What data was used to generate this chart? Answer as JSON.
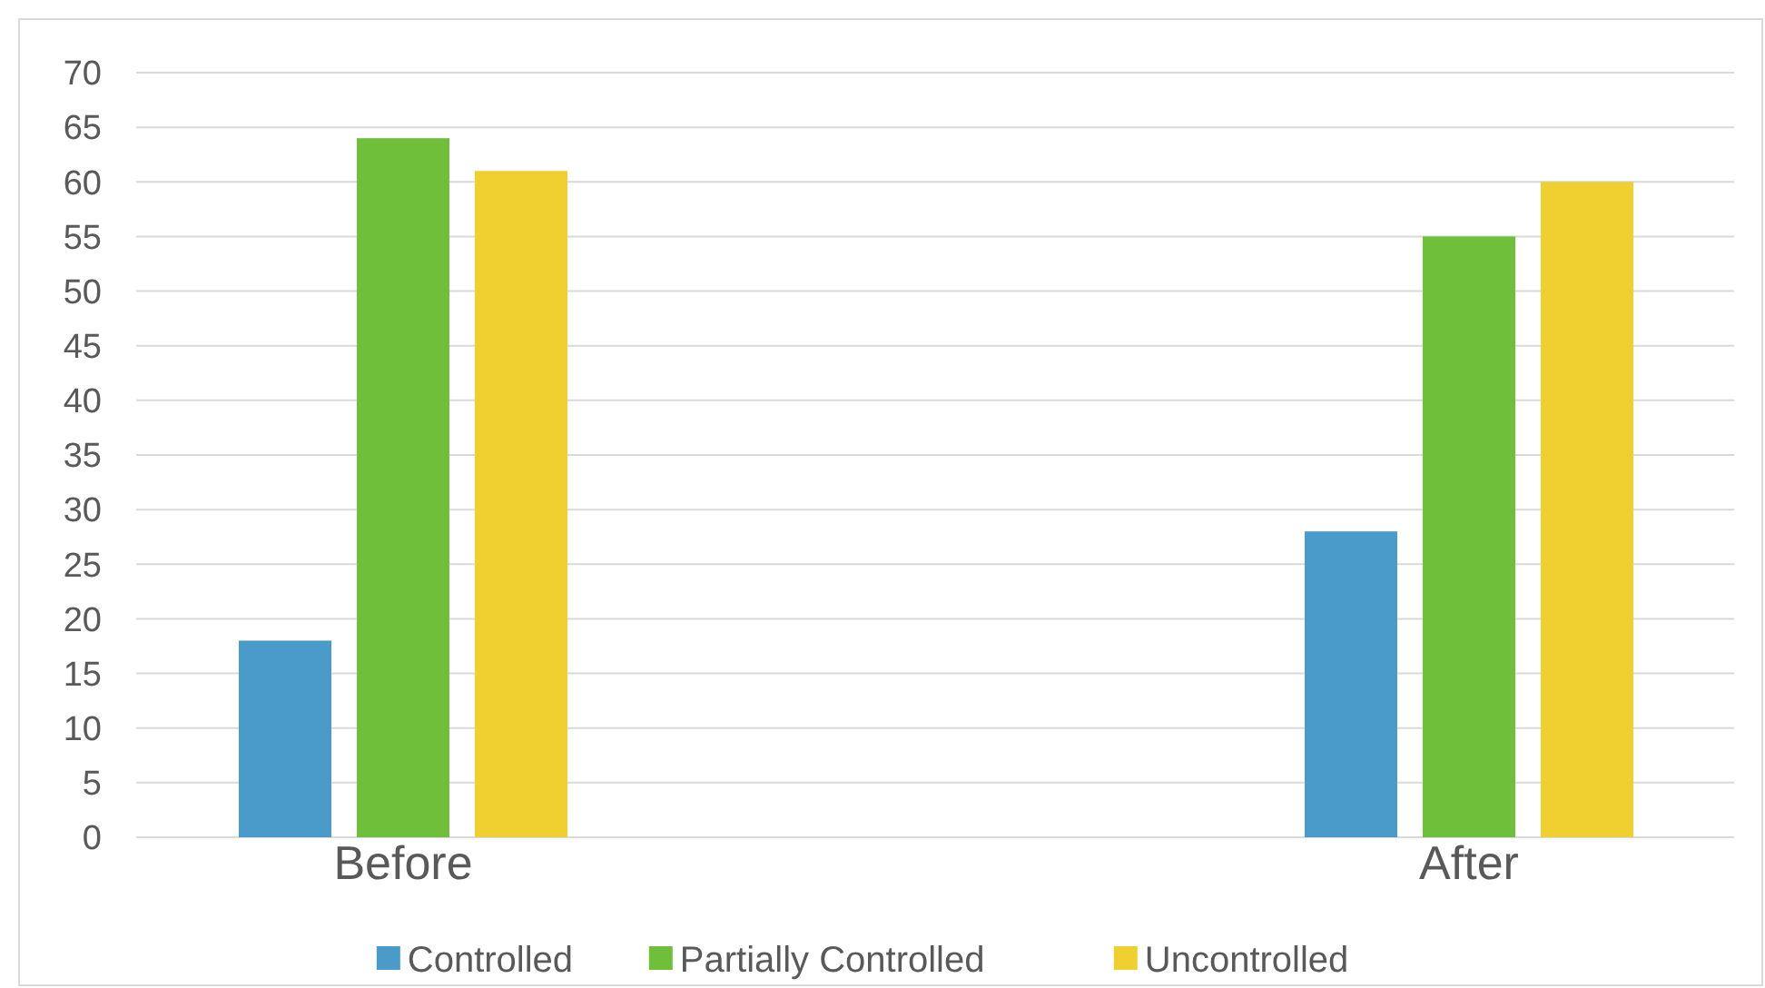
{
  "chart_data": {
    "type": "bar",
    "categories": [
      "Before",
      "After"
    ],
    "series": [
      {
        "name": "Controlled",
        "color": "#4a9bc9",
        "values": [
          18,
          28
        ]
      },
      {
        "name": "Partially Controlled",
        "color": "#70bf3a",
        "values": [
          64,
          55
        ]
      },
      {
        "name": "Uncontrolled",
        "color": "#efd030",
        "values": [
          61,
          60
        ]
      }
    ],
    "ylim": [
      0,
      70
    ],
    "yticks": [
      0,
      5,
      10,
      15,
      20,
      25,
      30,
      35,
      40,
      45,
      50,
      55,
      60,
      65,
      70
    ],
    "grid": "y",
    "legend": "bottom"
  }
}
